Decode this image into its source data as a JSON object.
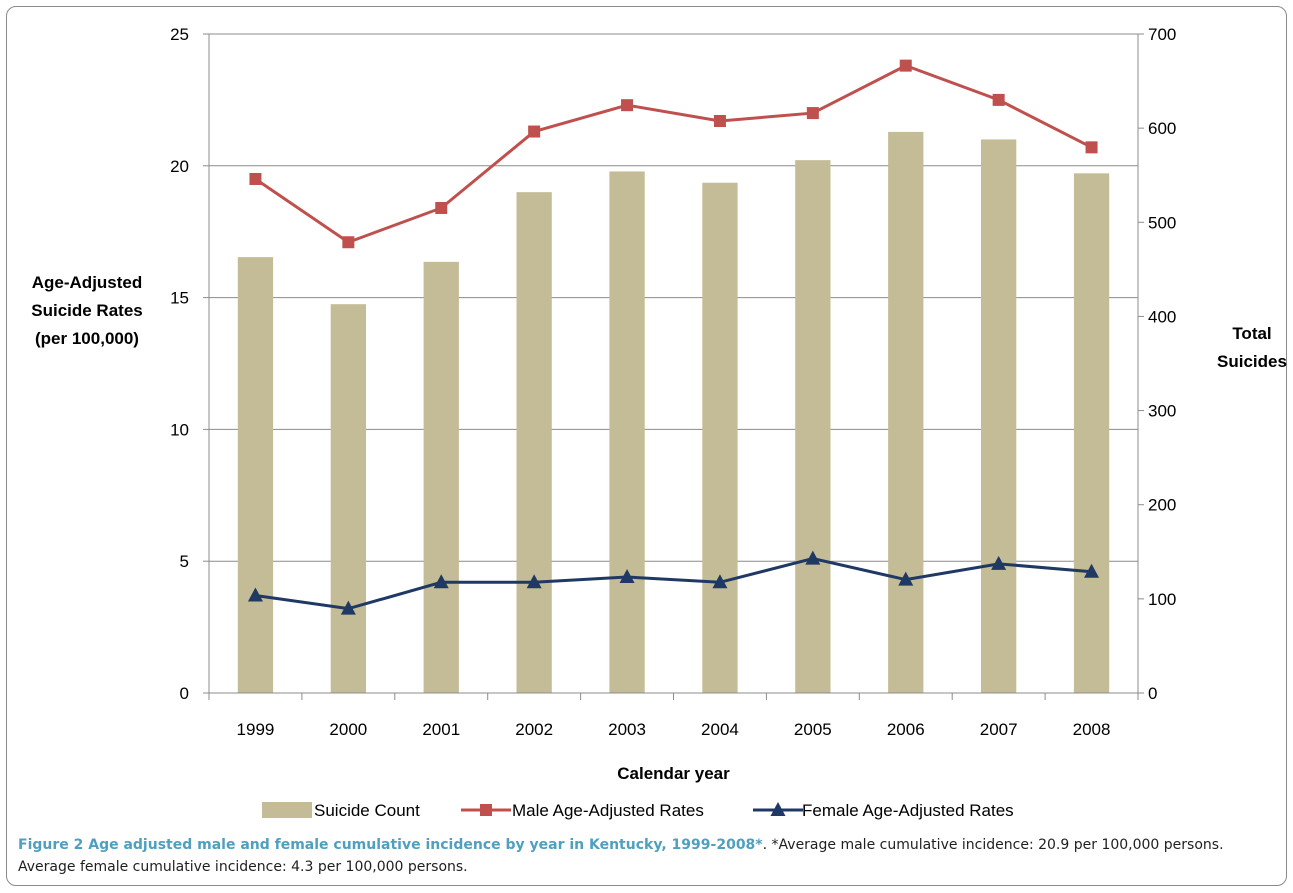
{
  "chart_data": {
    "type": "bar+line",
    "categories": [
      "1999",
      "2000",
      "2001",
      "2002",
      "2003",
      "2004",
      "2005",
      "2006",
      "2007",
      "2008"
    ],
    "bar_series": {
      "name": "Suicide Count",
      "color": "#c4bc96",
      "axis": "right",
      "values": [
        463,
        413,
        458,
        532,
        554,
        542,
        566,
        596,
        588,
        552
      ]
    },
    "line_series": [
      {
        "name": "Male Age-Adjusted Rates",
        "color": "#c0504d",
        "marker": "square",
        "axis": "left",
        "values": [
          19.5,
          17.1,
          18.4,
          21.3,
          22.3,
          21.7,
          22.0,
          23.8,
          22.5,
          20.7
        ]
      },
      {
        "name": "Female Age-Adjusted Rates",
        "color": "#1f3864",
        "marker": "triangle",
        "axis": "left",
        "values": [
          3.7,
          3.2,
          4.2,
          4.2,
          4.4,
          4.2,
          5.1,
          4.3,
          4.9,
          4.6
        ]
      }
    ],
    "left_axis": {
      "label_lines": [
        "Age-Adjusted",
        "Suicide Rates",
        "(per 100,000)"
      ],
      "min": 0,
      "max": 25,
      "ticks": [
        0,
        5,
        10,
        15,
        20,
        25
      ]
    },
    "right_axis": {
      "label_lines": [
        "Total",
        "Suicides"
      ],
      "min": 0,
      "max": 700,
      "ticks": [
        0,
        100,
        200,
        300,
        400,
        500,
        600,
        700
      ]
    },
    "xlabel": "Calendar year",
    "grid": "horizontal",
    "legend_position": "bottom"
  },
  "caption": {
    "bold": "Figure 2 Age adjusted male and female cumulative incidence by year in Kentucky, 1999-2008*",
    "text": ". *Average male cumulative incidence: 20.9 per 100,000 persons. Average female cumulative incidence: 4.3 per 100,000 persons."
  }
}
